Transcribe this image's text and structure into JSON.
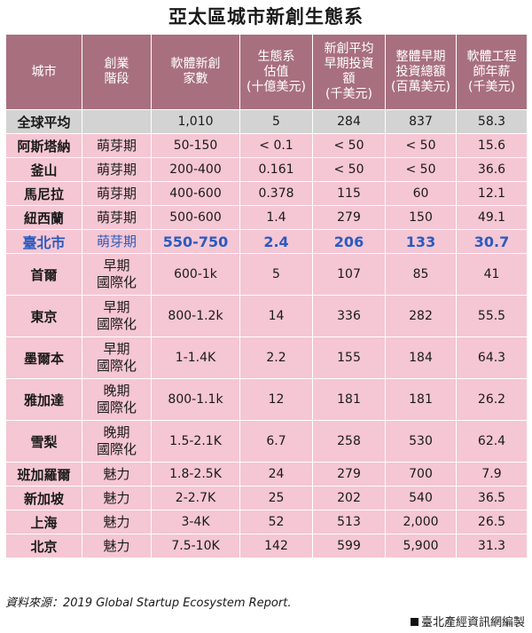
{
  "title": "亞太區城市新創生態系",
  "headers": [
    "城市",
    "創業\n階段",
    "軟體新創\n家數",
    "生態系\n估值\n(十億美元)",
    "新創平均\n早期投資\n額\n(千美元)",
    "整體早期\n投資總額\n(百萬美元)",
    "軟體工程\n師年薪\n(千美元)"
  ],
  "global": {
    "city": "全球平均",
    "stage": "",
    "startups": "1,010",
    "valuation": "5",
    "avg_early": "284",
    "total_early": "837",
    "salary": "58.3"
  },
  "rows": [
    {
      "city": "阿斯塔納",
      "stage": "萌芽期",
      "startups": "50-150",
      "valuation": "< 0.1",
      "avg_early": "< 50",
      "total_early": "< 50",
      "salary": "15.6"
    },
    {
      "city": "釜山",
      "stage": "萌芽期",
      "startups": "200-400",
      "valuation": "0.161",
      "avg_early": "< 50",
      "total_early": "< 50",
      "salary": "36.6"
    },
    {
      "city": "馬尼拉",
      "stage": "萌芽期",
      "startups": "400-600",
      "valuation": "0.378",
      "avg_early": "115",
      "total_early": "60",
      "salary": "12.1"
    },
    {
      "city": "紐西蘭",
      "stage": "萌芽期",
      "startups": "500-600",
      "valuation": "1.4",
      "avg_early": "279",
      "total_early": "150",
      "salary": "49.1"
    },
    {
      "city": "臺北市",
      "stage": "萌芽期",
      "startups": "550-750",
      "valuation": "2.4",
      "avg_early": "206",
      "total_early": "133",
      "salary": "30.7"
    },
    {
      "city": "首爾",
      "stage": "早期\n國際化",
      "startups": "600-1k",
      "valuation": "5",
      "avg_early": "107",
      "total_early": "85",
      "salary": "41"
    },
    {
      "city": "東京",
      "stage": "早期\n國際化",
      "startups": "800-1.2k",
      "valuation": "14",
      "avg_early": "336",
      "total_early": "282",
      "salary": "55.5"
    },
    {
      "city": "墨爾本",
      "stage": "早期\n國際化",
      "startups": "1-1.4K",
      "valuation": "2.2",
      "avg_early": "155",
      "total_early": "184",
      "salary": "64.3"
    },
    {
      "city": "雅加達",
      "stage": "晚期\n國際化",
      "startups": "800-1.1k",
      "valuation": "12",
      "avg_early": "181",
      "total_early": "181",
      "salary": "26.2"
    },
    {
      "city": "雪梨",
      "stage": "晚期\n國際化",
      "startups": "1.5-2.1K",
      "valuation": "6.7",
      "avg_early": "258",
      "total_early": "530",
      "salary": "62.4"
    },
    {
      "city": "班加羅爾",
      "stage": "魅力",
      "startups": "1.8-2.5K",
      "valuation": "24",
      "avg_early": "279",
      "total_early": "700",
      "salary": "7.9"
    },
    {
      "city": "新加坡",
      "stage": "魅力",
      "startups": "2-2.7K",
      "valuation": "25",
      "avg_early": "202",
      "total_early": "540",
      "salary": "36.5"
    },
    {
      "city": "上海",
      "stage": "魅力",
      "startups": "3-4K",
      "valuation": "52",
      "avg_early": "513",
      "total_early": "2,000",
      "salary": "26.5"
    },
    {
      "city": "北京",
      "stage": "魅力",
      "startups": "7.5-10K",
      "valuation": "142",
      "avg_early": "599",
      "total_early": "5,900",
      "salary": "31.3"
    }
  ],
  "source": "資料來源：2019 Global Startup Ecosystem Report.",
  "credit": "臺北產經資訊網編製",
  "colors": {
    "header_bg": "#a8707f",
    "row_bg": "#f5c6d4",
    "global_bg": "#d3d3d3",
    "highlight": "#2a5bbf"
  }
}
